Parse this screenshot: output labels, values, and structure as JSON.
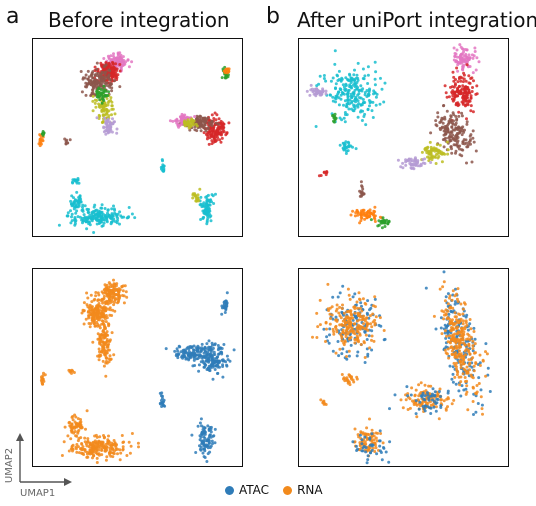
{
  "panels": {
    "a": {
      "letter": "a",
      "title": "Before integration"
    },
    "b": {
      "letter": "b",
      "title": "After uniPort integration"
    }
  },
  "axes": {
    "x_label": "UMAP1",
    "y_label": "UMAP2"
  },
  "legend": [
    {
      "label": "ATAC",
      "color": "#2f7cb8"
    },
    {
      "label": "RNA",
      "color": "#f28a1c"
    }
  ],
  "chart_data": [
    {
      "type": "scatter",
      "panel": "a",
      "row": "cell-type",
      "title": "Before integration",
      "xlabel": "UMAP1",
      "ylabel": "UMAP2",
      "grid": false,
      "clusters": [
        {
          "color": "#e377c2",
          "cx": 0.4,
          "cy": 0.12,
          "rx": 0.05,
          "ry": 0.035,
          "n": 120,
          "rot": 0
        },
        {
          "color": "#d62728",
          "cx": 0.36,
          "cy": 0.17,
          "rx": 0.05,
          "ry": 0.05,
          "n": 150,
          "rot": 0
        },
        {
          "color": "#8c564b",
          "cx": 0.31,
          "cy": 0.22,
          "rx": 0.06,
          "ry": 0.06,
          "n": 150,
          "rot": 0
        },
        {
          "color": "#bcbd22",
          "cx": 0.34,
          "cy": 0.35,
          "rx": 0.04,
          "ry": 0.07,
          "n": 90,
          "rot": 0
        },
        {
          "color": "#b59bd4",
          "cx": 0.36,
          "cy": 0.44,
          "rx": 0.03,
          "ry": 0.04,
          "n": 50,
          "rot": 0
        },
        {
          "color": "#2ca02c",
          "cx": 0.33,
          "cy": 0.28,
          "rx": 0.03,
          "ry": 0.03,
          "n": 40,
          "rot": 0
        },
        {
          "color": "#d62728",
          "cx": 0.87,
          "cy": 0.46,
          "rx": 0.05,
          "ry": 0.06,
          "n": 130,
          "rot": 0
        },
        {
          "color": "#8c564b",
          "cx": 0.8,
          "cy": 0.43,
          "rx": 0.06,
          "ry": 0.03,
          "n": 90,
          "rot": 0
        },
        {
          "color": "#e377c2",
          "cx": 0.71,
          "cy": 0.41,
          "rx": 0.04,
          "ry": 0.025,
          "n": 50,
          "rot": 0
        },
        {
          "color": "#bcbd22",
          "cx": 0.75,
          "cy": 0.43,
          "rx": 0.03,
          "ry": 0.02,
          "n": 40,
          "rot": 0
        },
        {
          "color": "#2ca02c",
          "cx": 0.92,
          "cy": 0.18,
          "rx": 0.015,
          "ry": 0.03,
          "n": 25,
          "rot": 0
        },
        {
          "color": "#ff7f0e",
          "cx": 0.93,
          "cy": 0.16,
          "rx": 0.01,
          "ry": 0.015,
          "n": 15,
          "rot": 0
        },
        {
          "color": "#17becf",
          "cx": 0.32,
          "cy": 0.9,
          "rx": 0.12,
          "ry": 0.04,
          "n": 180,
          "rot": 0
        },
        {
          "color": "#17becf",
          "cx": 0.21,
          "cy": 0.83,
          "rx": 0.03,
          "ry": 0.04,
          "n": 50,
          "rot": 0
        },
        {
          "color": "#17becf",
          "cx": 0.83,
          "cy": 0.86,
          "rx": 0.03,
          "ry": 0.07,
          "n": 80,
          "rot": 0
        },
        {
          "color": "#bcbd22",
          "cx": 0.78,
          "cy": 0.8,
          "rx": 0.015,
          "ry": 0.03,
          "n": 20,
          "rot": 0
        },
        {
          "color": "#17becf",
          "cx": 0.2,
          "cy": 0.72,
          "rx": 0.02,
          "ry": 0.015,
          "n": 15,
          "rot": 0
        },
        {
          "color": "#ff7f0e",
          "cx": 0.04,
          "cy": 0.52,
          "rx": 0.01,
          "ry": 0.03,
          "n": 15,
          "rot": 0
        },
        {
          "color": "#2ca02c",
          "cx": 0.05,
          "cy": 0.48,
          "rx": 0.01,
          "ry": 0.01,
          "n": 8,
          "rot": 0
        },
        {
          "color": "#17becf",
          "cx": 0.62,
          "cy": 0.65,
          "rx": 0.008,
          "ry": 0.03,
          "n": 15,
          "rot": 0
        },
        {
          "color": "#8c564b",
          "cx": 0.16,
          "cy": 0.52,
          "rx": 0.015,
          "ry": 0.01,
          "n": 8,
          "rot": 0
        }
      ]
    },
    {
      "type": "scatter",
      "panel": "b",
      "row": "cell-type",
      "title": "After uniPort integration",
      "xlabel": "UMAP1",
      "ylabel": "UMAP2",
      "grid": false,
      "clusters": [
        {
          "color": "#17becf",
          "cx": 0.25,
          "cy": 0.27,
          "rx": 0.11,
          "ry": 0.12,
          "n": 220,
          "rot": 0
        },
        {
          "color": "#b59bd4",
          "cx": 0.09,
          "cy": 0.27,
          "rx": 0.04,
          "ry": 0.025,
          "n": 40,
          "rot": 0
        },
        {
          "color": "#2ca02c",
          "cx": 0.17,
          "cy": 0.4,
          "rx": 0.015,
          "ry": 0.02,
          "n": 12,
          "rot": 0
        },
        {
          "color": "#17becf",
          "cx": 0.23,
          "cy": 0.55,
          "rx": 0.03,
          "ry": 0.03,
          "n": 25,
          "rot": 0
        },
        {
          "color": "#e377c2",
          "cx": 0.79,
          "cy": 0.1,
          "rx": 0.045,
          "ry": 0.05,
          "n": 90,
          "rot": 0
        },
        {
          "color": "#d62728",
          "cx": 0.78,
          "cy": 0.27,
          "rx": 0.06,
          "ry": 0.08,
          "n": 150,
          "rot": 0
        },
        {
          "color": "#8c564b",
          "cx": 0.74,
          "cy": 0.48,
          "rx": 0.07,
          "ry": 0.1,
          "n": 160,
          "rot": -0.5
        },
        {
          "color": "#bcbd22",
          "cx": 0.64,
          "cy": 0.58,
          "rx": 0.05,
          "ry": 0.04,
          "n": 70,
          "rot": 0
        },
        {
          "color": "#b59bd4",
          "cx": 0.55,
          "cy": 0.63,
          "rx": 0.05,
          "ry": 0.025,
          "n": 50,
          "rot": 0
        },
        {
          "color": "#ff7f0e",
          "cx": 0.32,
          "cy": 0.89,
          "rx": 0.05,
          "ry": 0.03,
          "n": 60,
          "rot": 0
        },
        {
          "color": "#2ca02c",
          "cx": 0.4,
          "cy": 0.93,
          "rx": 0.03,
          "ry": 0.02,
          "n": 30,
          "rot": 0
        },
        {
          "color": "#8c564b",
          "cx": 0.3,
          "cy": 0.77,
          "rx": 0.01,
          "ry": 0.03,
          "n": 15,
          "rot": 0
        },
        {
          "color": "#d62728",
          "cx": 0.12,
          "cy": 0.68,
          "rx": 0.015,
          "ry": 0.01,
          "n": 8,
          "rot": 0
        }
      ]
    },
    {
      "type": "scatter",
      "panel": "a",
      "row": "modality",
      "xlabel": "UMAP1",
      "ylabel": "UMAP2",
      "grid": false,
      "series": [
        "ATAC",
        "RNA"
      ],
      "clusters": [
        {
          "series": "RNA",
          "color": "#f28a1c",
          "cx": 0.38,
          "cy": 0.12,
          "rx": 0.05,
          "ry": 0.05,
          "n": 120,
          "rot": 0
        },
        {
          "series": "RNA",
          "color": "#f28a1c",
          "cx": 0.31,
          "cy": 0.22,
          "rx": 0.06,
          "ry": 0.07,
          "n": 170,
          "rot": 0
        },
        {
          "series": "RNA",
          "color": "#f28a1c",
          "cx": 0.34,
          "cy": 0.38,
          "rx": 0.04,
          "ry": 0.1,
          "n": 110,
          "rot": 0
        },
        {
          "series": "RNA",
          "color": "#f28a1c",
          "cx": 0.32,
          "cy": 0.9,
          "rx": 0.12,
          "ry": 0.05,
          "n": 200,
          "rot": 0
        },
        {
          "series": "RNA",
          "color": "#f28a1c",
          "cx": 0.21,
          "cy": 0.8,
          "rx": 0.04,
          "ry": 0.06,
          "n": 60,
          "rot": 0
        },
        {
          "series": "RNA",
          "color": "#f28a1c",
          "cx": 0.05,
          "cy": 0.55,
          "rx": 0.01,
          "ry": 0.03,
          "n": 15,
          "rot": 0
        },
        {
          "series": "RNA",
          "color": "#f28a1c",
          "cx": 0.18,
          "cy": 0.52,
          "rx": 0.02,
          "ry": 0.01,
          "n": 8,
          "rot": 0
        },
        {
          "series": "ATAC",
          "color": "#2f7cb8",
          "cx": 0.86,
          "cy": 0.46,
          "rx": 0.06,
          "ry": 0.07,
          "n": 150,
          "rot": 0
        },
        {
          "series": "ATAC",
          "color": "#2f7cb8",
          "cx": 0.76,
          "cy": 0.43,
          "rx": 0.07,
          "ry": 0.035,
          "n": 110,
          "rot": 0
        },
        {
          "series": "ATAC",
          "color": "#2f7cb8",
          "cx": 0.92,
          "cy": 0.18,
          "rx": 0.015,
          "ry": 0.035,
          "n": 25,
          "rot": 0
        },
        {
          "series": "ATAC",
          "color": "#2f7cb8",
          "cx": 0.83,
          "cy": 0.87,
          "rx": 0.035,
          "ry": 0.07,
          "n": 90,
          "rot": 0
        },
        {
          "series": "ATAC",
          "color": "#2f7cb8",
          "cx": 0.62,
          "cy": 0.67,
          "rx": 0.01,
          "ry": 0.04,
          "n": 18,
          "rot": 0
        }
      ]
    },
    {
      "type": "scatter",
      "panel": "b",
      "row": "modality",
      "xlabel": "UMAP1",
      "ylabel": "UMAP2",
      "grid": false,
      "series": [
        "ATAC",
        "RNA"
      ],
      "clusters": [
        {
          "series": "ATAC",
          "color": "#2f7cb8",
          "cx": 0.26,
          "cy": 0.29,
          "rx": 0.13,
          "ry": 0.14,
          "n": 130,
          "rot": 0
        },
        {
          "series": "RNA",
          "color": "#f28a1c",
          "cx": 0.26,
          "cy": 0.29,
          "rx": 0.11,
          "ry": 0.12,
          "n": 200,
          "rot": 0
        },
        {
          "series": "ATAC",
          "color": "#2f7cb8",
          "cx": 0.77,
          "cy": 0.38,
          "rx": 0.08,
          "ry": 0.26,
          "n": 170,
          "rot": -0.2
        },
        {
          "series": "RNA",
          "color": "#f28a1c",
          "cx": 0.77,
          "cy": 0.38,
          "rx": 0.065,
          "ry": 0.24,
          "n": 260,
          "rot": -0.2
        },
        {
          "series": "RNA",
          "color": "#f28a1c",
          "cx": 0.61,
          "cy": 0.66,
          "rx": 0.09,
          "ry": 0.06,
          "n": 110,
          "rot": 0
        },
        {
          "series": "ATAC",
          "color": "#2f7cb8",
          "cx": 0.61,
          "cy": 0.66,
          "rx": 0.1,
          "ry": 0.07,
          "n": 50,
          "rot": 0
        },
        {
          "series": "RNA",
          "color": "#f28a1c",
          "cx": 0.33,
          "cy": 0.88,
          "rx": 0.06,
          "ry": 0.06,
          "n": 80,
          "rot": 0
        },
        {
          "series": "ATAC",
          "color": "#2f7cb8",
          "cx": 0.34,
          "cy": 0.9,
          "rx": 0.07,
          "ry": 0.06,
          "n": 40,
          "rot": 0
        },
        {
          "series": "RNA",
          "color": "#f28a1c",
          "cx": 0.24,
          "cy": 0.56,
          "rx": 0.03,
          "ry": 0.03,
          "n": 25,
          "rot": 0
        },
        {
          "series": "RNA",
          "color": "#f28a1c",
          "cx": 0.12,
          "cy": 0.68,
          "rx": 0.015,
          "ry": 0.01,
          "n": 8,
          "rot": 0
        }
      ]
    }
  ]
}
